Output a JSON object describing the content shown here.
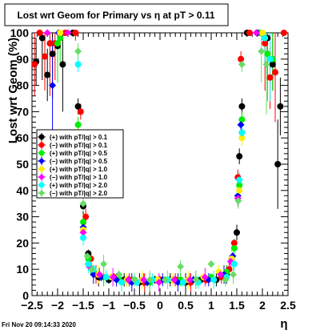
{
  "chart_data": {
    "type": "scatter",
    "title": "Lost wrt Geom for Primary vs    η at pT > 0.11",
    "xlabel": "η",
    "ylabel": "Lost wrt Geom (%)",
    "xlim": [
      -2.5,
      2.5
    ],
    "ylim": [
      0,
      100
    ],
    "grid": false,
    "legend_placement": "left-middle",
    "xticks": [
      "−2.5",
      "−2",
      "−1.5",
      "−1",
      "−0.5",
      "0",
      "0.5",
      "1",
      "1.5",
      "2",
      "2.5"
    ],
    "xtick_values": [
      -2.5,
      -2,
      -1.5,
      -1,
      -0.5,
      0,
      0.5,
      1,
      1.5,
      2,
      2.5
    ],
    "yticks": [
      "0",
      "10",
      "20",
      "30",
      "40",
      "50",
      "60",
      "70",
      "80",
      "90",
      "100"
    ],
    "ytick_values": [
      0,
      10,
      20,
      30,
      40,
      50,
      60,
      70,
      80,
      90,
      100
    ],
    "footer": "Fri Nov 20 09:14:33 2020",
    "series": [
      {
        "name": "(+) with pT/|q| > 0.1",
        "color": "#000000",
        "x": [
          -2.42,
          -2.3,
          -2.2,
          -2.1,
          -2.0,
          -1.9,
          -1.7,
          -1.6,
          -1.5,
          -1.4,
          -1.3,
          -1.2,
          -1.0,
          -0.7,
          -0.4,
          -0.1,
          0.2,
          0.5,
          0.8,
          1.1,
          1.3,
          1.4,
          1.5,
          1.55,
          1.6,
          1.7,
          1.9,
          2.1,
          2.2,
          2.3,
          2.35
        ],
        "y": [
          89,
          98,
          84,
          92,
          95,
          88,
          100,
          72,
          34,
          16,
          9,
          7,
          6,
          6,
          5,
          6,
          6,
          5,
          6,
          6,
          8,
          14,
          24,
          53,
          72,
          100,
          100,
          98,
          88,
          50,
          72
        ]
      },
      {
        "name": "(−) with pT/|q| > 0.1",
        "color": "#ff0000",
        "x": [
          -2.45,
          -2.35,
          -2.25,
          -2.15,
          -2.05,
          -1.85,
          -1.65,
          -1.55,
          -1.45,
          -1.35,
          -1.25,
          -0.9,
          -0.6,
          -0.3,
          0.0,
          0.3,
          0.6,
          0.9,
          1.2,
          1.35,
          1.45,
          1.52,
          1.58,
          1.75,
          1.95,
          2.05,
          2.15,
          2.25,
          2.42
        ],
        "y": [
          88,
          100,
          91,
          96,
          96,
          100,
          100,
          70,
          30,
          14,
          8,
          7,
          6,
          5,
          6,
          6,
          5,
          6,
          7,
          10,
          20,
          45,
          90,
          100,
          100,
          96,
          83,
          85,
          100
        ]
      },
      {
        "name": "(+) with pT/|q| > 0.5",
        "color": "#00ee00",
        "x": [
          -2.0,
          -1.95,
          -1.6,
          -1.5,
          -1.4,
          -1.3,
          -1.1,
          -0.8,
          -0.5,
          -0.2,
          0.1,
          0.4,
          0.7,
          1.0,
          1.3,
          1.45,
          1.55,
          1.6,
          1.95,
          2.1,
          2.2
        ],
        "y": [
          96,
          98,
          65,
          28,
          14,
          9,
          7,
          6,
          6,
          5,
          6,
          6,
          6,
          7,
          9,
          18,
          42,
          67,
          100,
          92,
          90
        ]
      },
      {
        "name": "(−) with pT/|q| > 0.5",
        "color": "#0000ff",
        "x": [
          -2.1,
          -1.98,
          -1.6,
          -1.5,
          -1.4,
          -1.3,
          -1.15,
          -0.85,
          -0.55,
          -0.25,
          0.05,
          0.35,
          0.65,
          0.95,
          1.25,
          1.42,
          1.52,
          1.58,
          1.9
        ],
        "y": [
          80,
          100,
          62,
          26,
          12,
          8,
          7,
          6,
          5,
          5,
          6,
          5,
          6,
          6,
          8,
          15,
          38,
          65,
          100
        ]
      },
      {
        "name": "(+) with pT/|q| > 1.0",
        "color": "#ffee00",
        "x": [
          -1.95,
          -1.6,
          -1.5,
          -1.4,
          -1.2,
          -0.95,
          -0.65,
          -0.35,
          -0.05,
          0.25,
          0.55,
          0.85,
          1.15,
          1.4,
          1.55,
          1.6,
          2.0
        ],
        "y": [
          100,
          62,
          25,
          12,
          8,
          7,
          6,
          6,
          6,
          6,
          6,
          7,
          9,
          14,
          40,
          60,
          100
        ]
      },
      {
        "name": "(−) with pT/|q| > 1.0",
        "color": "#ff00ff",
        "x": [
          -2.2,
          -1.8,
          -1.6,
          -1.5,
          -1.38,
          -1.18,
          -0.92,
          -0.62,
          -0.32,
          -0.02,
          0.28,
          0.58,
          0.88,
          1.18,
          1.38,
          1.52,
          1.6,
          1.88
        ],
        "y": [
          100,
          100,
          60,
          24,
          11,
          8,
          7,
          6,
          6,
          5,
          6,
          6,
          7,
          8,
          13,
          37,
          62,
          100
        ]
      },
      {
        "name": "(+) with pT/|q| > 2.0",
        "color": "#00ffff",
        "x": [
          -1.6,
          -1.5,
          -1.4,
          -1.3,
          -1.05,
          -0.75,
          -0.45,
          -0.15,
          0.15,
          0.45,
          0.75,
          1.05,
          1.3,
          1.45,
          1.55,
          1.6,
          2.05,
          2.15
        ],
        "y": [
          88,
          22,
          12,
          10,
          7,
          5,
          5,
          6,
          6,
          5,
          5,
          6,
          7,
          12,
          44,
          62,
          98,
          90
        ]
      },
      {
        "name": "(−) with pT/|q| > 2.0",
        "color": "#66dd66",
        "x": [
          -1.6,
          -1.5,
          -1.42,
          -1.33,
          -1.1,
          -0.8,
          -0.5,
          -0.2,
          0.1,
          0.4,
          0.7,
          1.0,
          1.28,
          1.43,
          1.53,
          1.6,
          1.98,
          2.08
        ],
        "y": [
          93,
          35,
          15,
          10,
          12,
          8,
          6,
          6,
          6,
          11,
          6,
          12,
          6,
          8,
          36,
          88,
          93,
          88
        ]
      }
    ]
  }
}
